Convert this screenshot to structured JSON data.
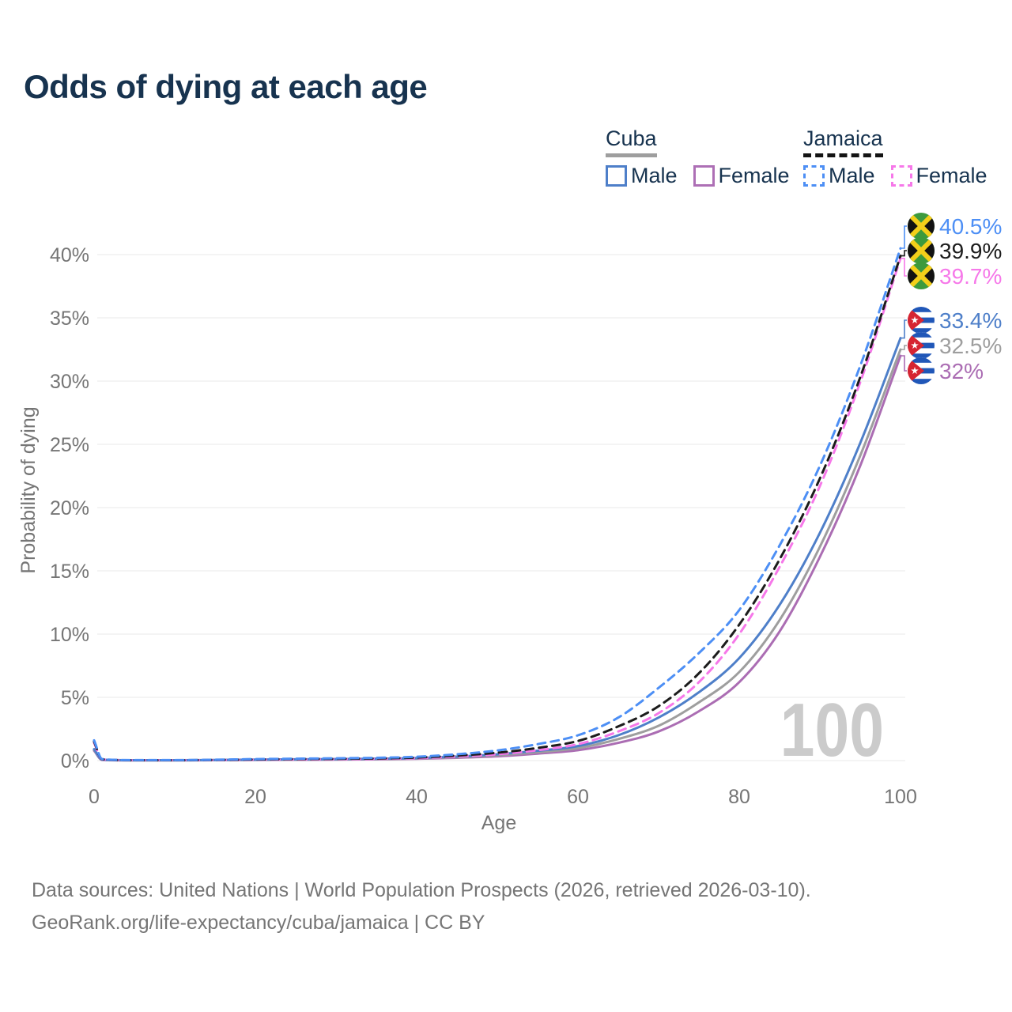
{
  "title": "Odds of dying at each age",
  "legend": {
    "groups": [
      {
        "label": "Cuba",
        "line_style": "solid",
        "underline_color": "#9e9e9e",
        "items": [
          {
            "label": "Male",
            "color": "#4e7fc9"
          },
          {
            "label": "Female",
            "color": "#ad6fb5"
          }
        ]
      },
      {
        "label": "Jamaica",
        "line_style": "dashed",
        "underline_color": "#141414",
        "items": [
          {
            "label": "Male",
            "color": "#4d8ff5"
          },
          {
            "label": "Female",
            "color": "#f678e9"
          }
        ]
      }
    ]
  },
  "chart_data": {
    "type": "line",
    "title": "Odds of dying at each age",
    "xlabel": "Age",
    "ylabel": "Probability of dying",
    "xlim": [
      0,
      100
    ],
    "ylim_percent": [
      0,
      42
    ],
    "grid": "horizontal-only",
    "x_tick_labels": [
      "0",
      "20",
      "40",
      "60",
      "80",
      "100"
    ],
    "y_tick_labels": [
      "0%",
      "5%",
      "10%",
      "15%",
      "20%",
      "25%",
      "30%",
      "35%",
      "40%"
    ],
    "watermark": "100",
    "series": [
      {
        "name": "Jamaica Male",
        "country": "Jamaica",
        "group": "Male",
        "line": "dashed",
        "color": "#4d8ff5",
        "flag": "jamaica",
        "end_label": "40.5%",
        "end_value": 40.5,
        "points": [
          [
            0,
            1.6
          ],
          [
            1,
            0.12
          ],
          [
            5,
            0.04
          ],
          [
            10,
            0.04
          ],
          [
            15,
            0.07
          ],
          [
            20,
            0.12
          ],
          [
            25,
            0.15
          ],
          [
            30,
            0.18
          ],
          [
            35,
            0.22
          ],
          [
            40,
            0.3
          ],
          [
            45,
            0.5
          ],
          [
            50,
            0.8
          ],
          [
            55,
            1.3
          ],
          [
            60,
            2.0
          ],
          [
            65,
            3.4
          ],
          [
            70,
            5.75
          ],
          [
            75,
            8.5
          ],
          [
            80,
            11.9
          ],
          [
            85,
            17.0
          ],
          [
            90,
            23.3
          ],
          [
            95,
            31.2
          ],
          [
            100,
            40.5
          ]
        ]
      },
      {
        "name": "Jamaica Total",
        "country": "Jamaica",
        "group": "Total",
        "line": "dashed",
        "color": "#1c1c1c",
        "flag": "jamaica",
        "end_label": "39.9%",
        "end_value": 39.9,
        "points": [
          [
            0,
            1.5
          ],
          [
            1,
            0.1
          ],
          [
            5,
            0.03
          ],
          [
            10,
            0.03
          ],
          [
            15,
            0.05
          ],
          [
            20,
            0.09
          ],
          [
            25,
            0.12
          ],
          [
            30,
            0.14
          ],
          [
            35,
            0.17
          ],
          [
            40,
            0.24
          ],
          [
            45,
            0.4
          ],
          [
            50,
            0.62
          ],
          [
            55,
            1.0
          ],
          [
            60,
            1.55
          ],
          [
            65,
            2.7
          ],
          [
            70,
            4.3
          ],
          [
            75,
            6.9
          ],
          [
            80,
            10.75
          ],
          [
            85,
            15.9
          ],
          [
            90,
            22.3
          ],
          [
            95,
            30.3
          ],
          [
            100,
            39.9
          ]
        ]
      },
      {
        "name": "Jamaica Female",
        "country": "Jamaica",
        "group": "Female",
        "line": "dashed",
        "color": "#f678e9",
        "flag": "jamaica",
        "end_label": "39.7%",
        "end_value": 39.7,
        "points": [
          [
            0,
            1.4
          ],
          [
            1,
            0.09
          ],
          [
            5,
            0.03
          ],
          [
            10,
            0.03
          ],
          [
            15,
            0.04
          ],
          [
            20,
            0.07
          ],
          [
            25,
            0.09
          ],
          [
            30,
            0.11
          ],
          [
            35,
            0.14
          ],
          [
            40,
            0.19
          ],
          [
            45,
            0.32
          ],
          [
            50,
            0.5
          ],
          [
            55,
            0.82
          ],
          [
            60,
            1.3
          ],
          [
            65,
            2.3
          ],
          [
            70,
            3.75
          ],
          [
            75,
            6.2
          ],
          [
            80,
            10.0
          ],
          [
            85,
            15.3
          ],
          [
            90,
            21.7
          ],
          [
            95,
            29.9
          ],
          [
            100,
            39.7
          ]
        ]
      },
      {
        "name": "Cuba Male",
        "country": "Cuba",
        "group": "Male",
        "line": "solid",
        "color": "#4e7fc9",
        "flag": "cuba",
        "end_label": "33.4%",
        "end_value": 33.4,
        "points": [
          [
            0,
            0.9
          ],
          [
            1,
            0.07
          ],
          [
            5,
            0.03
          ],
          [
            10,
            0.03
          ],
          [
            15,
            0.05
          ],
          [
            20,
            0.08
          ],
          [
            25,
            0.1
          ],
          [
            30,
            0.12
          ],
          [
            35,
            0.15
          ],
          [
            40,
            0.2
          ],
          [
            45,
            0.32
          ],
          [
            50,
            0.5
          ],
          [
            55,
            0.78
          ],
          [
            60,
            1.15
          ],
          [
            65,
            2.0
          ],
          [
            70,
            3.4
          ],
          [
            75,
            5.4
          ],
          [
            80,
            8.1
          ],
          [
            85,
            12.3
          ],
          [
            90,
            18.0
          ],
          [
            95,
            25.1
          ],
          [
            100,
            33.4
          ]
        ]
      },
      {
        "name": "Cuba Total",
        "country": "Cuba",
        "group": "Total",
        "line": "solid",
        "color": "#9e9e9e",
        "flag": "cuba",
        "end_label": "32.5%",
        "end_value": 32.5,
        "points": [
          [
            0,
            0.85
          ],
          [
            1,
            0.06
          ],
          [
            5,
            0.02
          ],
          [
            10,
            0.02
          ],
          [
            15,
            0.04
          ],
          [
            20,
            0.06
          ],
          [
            25,
            0.08
          ],
          [
            30,
            0.1
          ],
          [
            35,
            0.13
          ],
          [
            40,
            0.17
          ],
          [
            45,
            0.27
          ],
          [
            50,
            0.42
          ],
          [
            55,
            0.66
          ],
          [
            60,
            0.98
          ],
          [
            65,
            1.7
          ],
          [
            70,
            2.75
          ],
          [
            75,
            4.6
          ],
          [
            80,
            7.0
          ],
          [
            85,
            11.1
          ],
          [
            90,
            16.9
          ],
          [
            95,
            24.1
          ],
          [
            100,
            32.5
          ]
        ]
      },
      {
        "name": "Cuba Female",
        "country": "Cuba",
        "group": "Female",
        "line": "solid",
        "color": "#ab6db3",
        "flag": "cuba",
        "end_label": "32%",
        "end_value": 32.0,
        "points": [
          [
            0,
            0.78
          ],
          [
            1,
            0.05
          ],
          [
            5,
            0.02
          ],
          [
            10,
            0.02
          ],
          [
            15,
            0.03
          ],
          [
            20,
            0.05
          ],
          [
            25,
            0.06
          ],
          [
            30,
            0.08
          ],
          [
            35,
            0.1
          ],
          [
            40,
            0.14
          ],
          [
            45,
            0.22
          ],
          [
            50,
            0.34
          ],
          [
            55,
            0.55
          ],
          [
            60,
            0.82
          ],
          [
            65,
            1.4
          ],
          [
            70,
            2.3
          ],
          [
            75,
            3.9
          ],
          [
            80,
            6.2
          ],
          [
            85,
            10.2
          ],
          [
            90,
            16.1
          ],
          [
            95,
            23.3
          ],
          [
            100,
            32.0
          ]
        ]
      }
    ]
  },
  "footer": {
    "line1": "Data sources: United Nations | World Population Prospects (2026, retrieved 2026-03-10).",
    "line2": "GeoRank.org/life-expectancy/cuba/jamaica | CC BY"
  }
}
